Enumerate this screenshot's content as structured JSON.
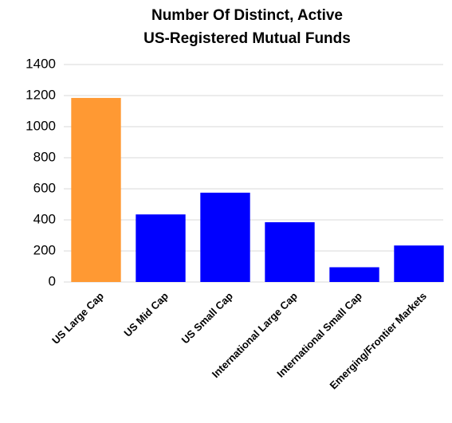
{
  "chart_data": {
    "type": "bar",
    "title": [
      "Number Of Distinct, Active",
      "US-Registered Mutual Funds"
    ],
    "categories": [
      "US Large Cap",
      "US Mid Cap",
      "US Small Cap",
      "International Large Cap",
      "International Small Cap",
      "Emerging/Frontier Markets"
    ],
    "values": [
      1185,
      435,
      575,
      385,
      95,
      235
    ],
    "colors": [
      "#ff9933",
      "#0000ff",
      "#0000ff",
      "#0000ff",
      "#0000ff",
      "#0000ff"
    ],
    "ylim": [
      0,
      1400
    ],
    "yticks": [
      0,
      200,
      400,
      600,
      800,
      1000,
      1200,
      1400
    ],
    "grid": true
  }
}
